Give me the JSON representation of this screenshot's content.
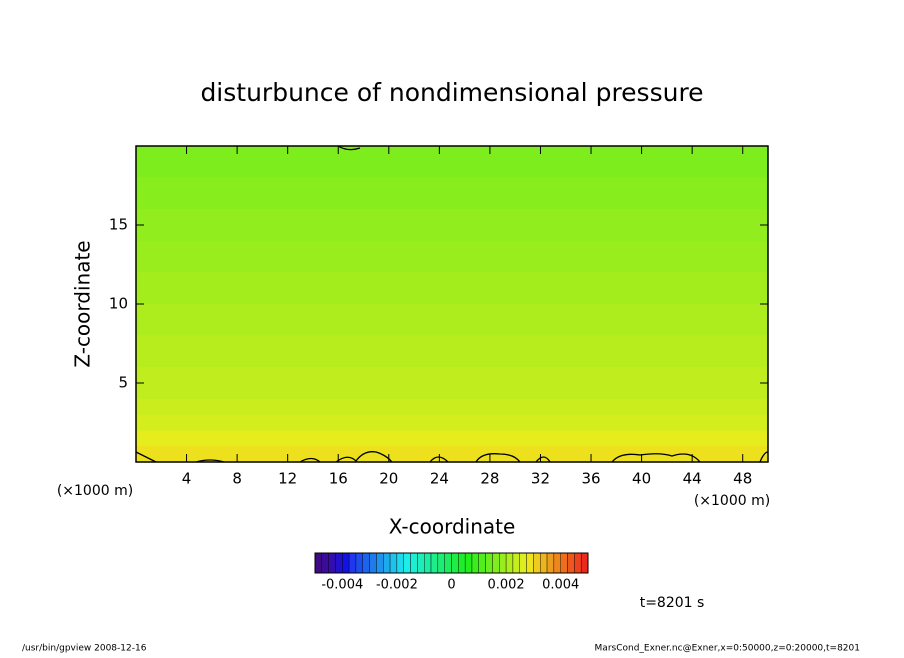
{
  "chart_data": {
    "type": "contour",
    "title": "disturbunce of nondimensional pressure",
    "x_label": "X-coordinate",
    "y_label": "Z-coordinate",
    "x_unit": "(×1000 m)",
    "y_unit": "(×1000 m)",
    "xlim": [
      0,
      50
    ],
    "xticks": [
      4,
      8,
      12,
      16,
      20,
      24,
      28,
      32,
      36,
      40,
      44,
      48
    ],
    "ylim": [
      0,
      20
    ],
    "yticks": [
      5,
      10,
      15
    ],
    "zbins": [
      0,
      1,
      2,
      3,
      4,
      6,
      8,
      10,
      12,
      14,
      16,
      18,
      20
    ],
    "values": [
      0.0029,
      0.0027,
      0.0025,
      0.0024,
      0.0023,
      0.0022,
      0.0021,
      0.002,
      0.0019,
      0.0018,
      0.0017,
      0.0016
    ],
    "colorbar": {
      "lim": [
        -0.005,
        0.005
      ],
      "ticks": [
        -0.004,
        -0.002,
        0,
        0.002,
        0.004
      ]
    },
    "time_label": "t=8201 s",
    "footer_left": "/usr/bin/gpview   2008-12-16",
    "footer_right": "MarsCond_Exner.nc@Exner,x=0:50000,z=0:20000,t=8201"
  }
}
